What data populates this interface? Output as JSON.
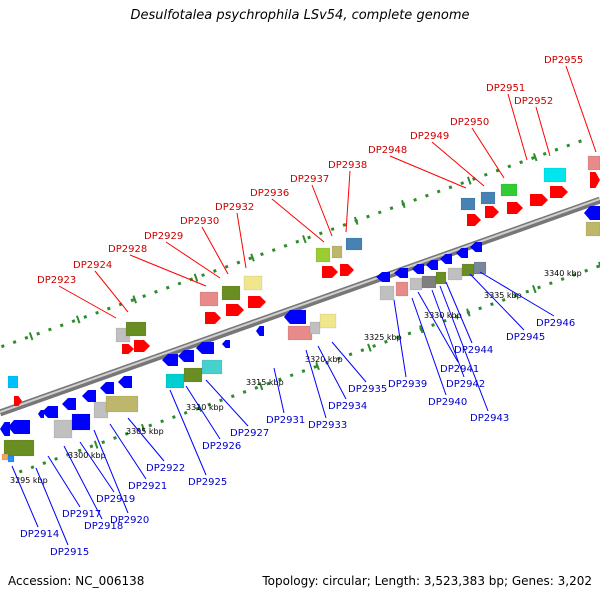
{
  "title": "Desulfotalea psychrophila LSv54, complete genome",
  "footer": {
    "accession": "Accession: NC_006138",
    "summary": "Topology: circular; Length: 3,523,383 bp; Genes: 3,202"
  },
  "colors": {
    "backbone": "#8c8c8c",
    "forward_label": "#cc0000",
    "reverse_label": "#0000cc",
    "tick": "#2e8b2e"
  },
  "scale": [
    {
      "label": "3295 kbp"
    },
    {
      "label": "3300 kbp"
    },
    {
      "label": "3305 kbp"
    },
    {
      "label": "3310 kbp"
    },
    {
      "label": "3315 kbp"
    },
    {
      "label": "3320 kbp"
    },
    {
      "label": "3325 kbp"
    },
    {
      "label": "3330 kbp"
    },
    {
      "label": "3335 kbp"
    },
    {
      "label": "3340 kbp"
    }
  ],
  "forward_genes": [
    {
      "label": "DP2923"
    },
    {
      "label": "DP2924"
    },
    {
      "label": "DP2928"
    },
    {
      "label": "DP2929"
    },
    {
      "label": "DP2930"
    },
    {
      "label": "DP2932"
    },
    {
      "label": "DP2936"
    },
    {
      "label": "DP2937"
    },
    {
      "label": "DP2938"
    },
    {
      "label": "DP2948"
    },
    {
      "label": "DP2949"
    },
    {
      "label": "DP2950"
    },
    {
      "label": "DP2951"
    },
    {
      "label": "DP2952"
    },
    {
      "label": "DP2955"
    }
  ],
  "reverse_genes": [
    {
      "label": "DP2914"
    },
    {
      "label": "DP2915"
    },
    {
      "label": "DP2917"
    },
    {
      "label": "DP2918"
    },
    {
      "label": "DP2919"
    },
    {
      "label": "DP2920"
    },
    {
      "label": "DP2921"
    },
    {
      "label": "DP2922"
    },
    {
      "label": "DP2925"
    },
    {
      "label": "DP2926"
    },
    {
      "label": "DP2927"
    },
    {
      "label": "DP2931"
    },
    {
      "label": "DP2933"
    },
    {
      "label": "DP2934"
    },
    {
      "label": "DP2935"
    },
    {
      "label": "DP2939"
    },
    {
      "label": "DP2940"
    },
    {
      "label": "DP2941"
    },
    {
      "label": "DP2942"
    },
    {
      "label": "DP2943"
    },
    {
      "label": "DP2944"
    },
    {
      "label": "DP2945"
    },
    {
      "label": "DP2946"
    }
  ]
}
